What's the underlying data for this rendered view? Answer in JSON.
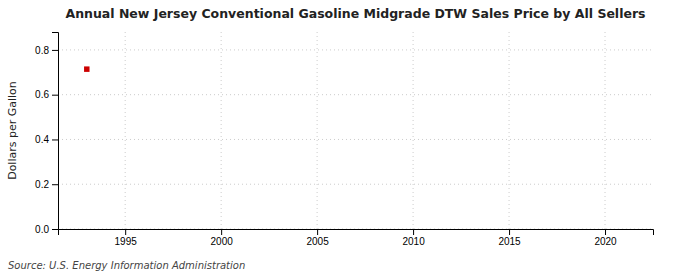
{
  "chart_data": {
    "type": "scatter",
    "title": "Annual New Jersey Conventional Gasoline Midgrade DTW Sales Price by All Sellers",
    "ylabel": "Dollars per Gallon",
    "source": "Source: U.S. Energy Information Administration",
    "x": [
      1993
    ],
    "values": [
      0.714
    ],
    "color": "#cc0000",
    "marker": "square",
    "xlim": [
      1991.5,
      2022.5
    ],
    "ylim": [
      0.0,
      0.88
    ],
    "xticks": [
      1995,
      2000,
      2005,
      2010,
      2015,
      2020
    ],
    "yticks": [
      {
        "value": 0.0,
        "label": "0.0"
      },
      0.2,
      0.4,
      0.6,
      0.8
    ],
    "grid": true
  }
}
